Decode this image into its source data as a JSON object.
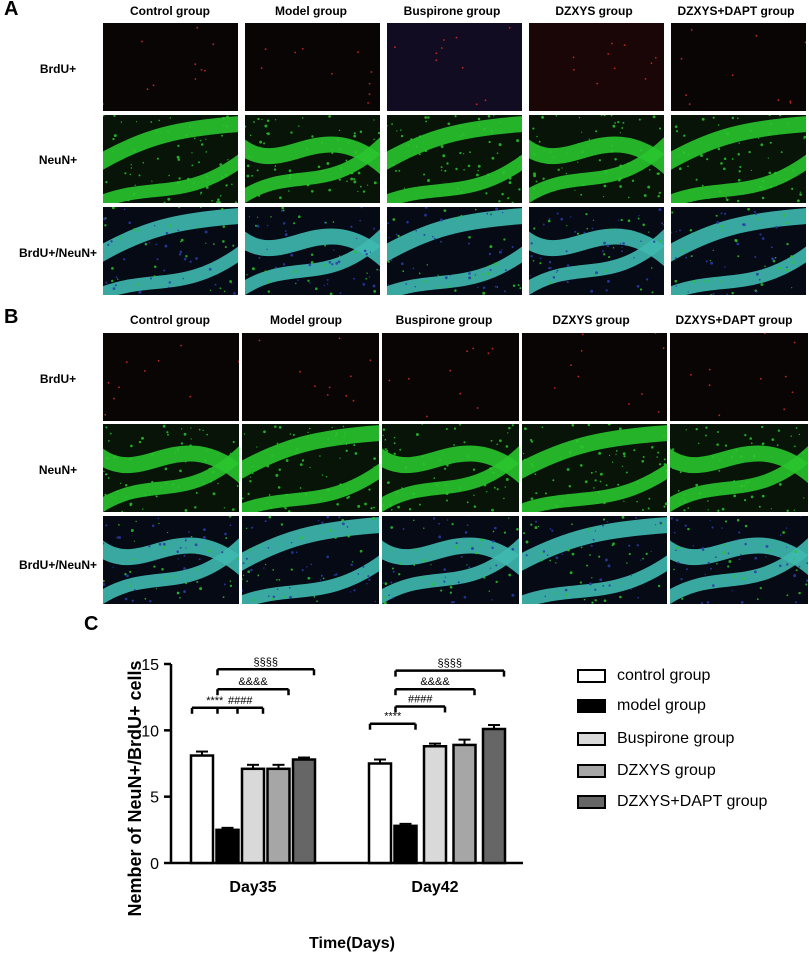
{
  "panels": {
    "A": {
      "letter": "A",
      "columns": [
        "Control group",
        "Model group",
        "Buspirone group",
        "DZXYS group",
        "DZXYS+DAPT group"
      ],
      "rows": [
        "BrdU+",
        "NeuN+",
        "BrdU+/NeuN+"
      ]
    },
    "B": {
      "letter": "B",
      "columns": [
        "Control group",
        "Model group",
        "Buspirone group",
        "DZXYS group",
        "DZXYS+DAPT group"
      ],
      "rows": [
        "BrdU+",
        "NeuN+",
        "BrdU+/NeuN+"
      ]
    },
    "C": {
      "letter": "C"
    }
  },
  "chart_data": {
    "type": "bar",
    "xlabel": "Time(Days)",
    "ylabel": "Nember of NeuN+/BrdU+ cells",
    "ylim": [
      0,
      15
    ],
    "yticks": [
      "0",
      "5",
      "10",
      "15"
    ],
    "categories": [
      "Day35",
      "Day42"
    ],
    "series": [
      {
        "name": "control group",
        "values": [
          8.1,
          7.5
        ],
        "errors": [
          0.3,
          0.3
        ],
        "color": "#ffffff"
      },
      {
        "name": "model group",
        "values": [
          2.5,
          2.8
        ],
        "errors": [
          0.15,
          0.15
        ],
        "color": "#000000"
      },
      {
        "name": "Buspirone group",
        "values": [
          7.1,
          8.8
        ],
        "errors": [
          0.3,
          0.2
        ],
        "color": "#d9d9d9"
      },
      {
        "name": "DZXYS group",
        "values": [
          7.1,
          8.9
        ],
        "errors": [
          0.3,
          0.4
        ],
        "color": "#a6a6a6"
      },
      {
        "name": "DZXYS+DAPT group",
        "values": [
          7.8,
          10.1
        ],
        "errors": [
          0.15,
          0.3
        ],
        "color": "#666666"
      }
    ],
    "annotations": [
      "****",
      "####",
      "&&&&",
      "§§§§"
    ],
    "legend_position": "right"
  },
  "micrographs": {
    "colors": {
      "red_bg": "#120505",
      "green": "#29c42d",
      "cyan": "#3fb9b0",
      "blue_dot": "#2a3aa8",
      "red_dot": "#c0281f"
    }
  }
}
